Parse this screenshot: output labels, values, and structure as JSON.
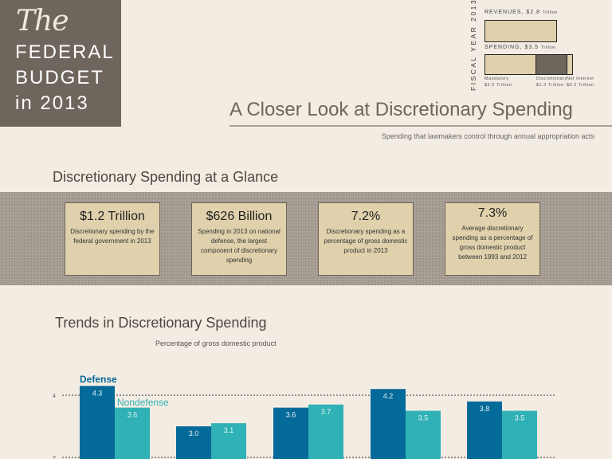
{
  "title_block": {
    "the": "The",
    "line1": "FEDERAL",
    "line2": "BUDGET",
    "line3": "in 2013"
  },
  "fiscal_year": {
    "vertical_label": "FISCAL YEAR 2013",
    "revenues_label": "REVENUES, $2.8",
    "revenues_unit": "Trillion",
    "spending_label": "SPENDING, $3.5",
    "spending_unit": "Trillion",
    "segments": [
      {
        "name": "Mandatory",
        "amount": "$2.0 Trillion",
        "value": 2.0,
        "color": "#e0d1ac"
      },
      {
        "name": "Discretionary",
        "amount": "$1.2 Trillion",
        "value": 1.2,
        "color": "#6e655c"
      },
      {
        "name": "Net Interest",
        "amount": "$0.2 Trillion",
        "value": 0.2,
        "color": "#e0d1ac"
      }
    ]
  },
  "header": {
    "title": "A Closer Look at Discretionary Spending",
    "subtitle": "Spending that lawmakers control through annual appropriation acts"
  },
  "glance": {
    "heading": "Discretionary Spending at a Glance",
    "cards": [
      {
        "value": "$1.2 Trillion",
        "desc": "Discretionary spending by the federal government in 2013"
      },
      {
        "value": "$626 Billion",
        "desc": "Spending in 2013 on national defense, the largest component of discretionary spending"
      },
      {
        "value": "7.2%",
        "desc": "Discretionary spending as a percentage of gross domestic product in 2013"
      },
      {
        "value": "7.3%",
        "desc": "Average discretionary spending as a percentage of gross domestic product between 1993 and 2012"
      }
    ]
  },
  "trends": {
    "heading": "Trends in Discretionary Spending",
    "subheading": "Percentage of gross domestic product"
  },
  "chart_data": {
    "type": "bar",
    "ylabel": "Percentage of gross domestic product",
    "yticks": [
      2,
      4
    ],
    "grid": true,
    "legend_placement": "top-left",
    "series": [
      {
        "name": "Defense",
        "color": "#046a99",
        "values": [
          4.3,
          3.0,
          3.6,
          4.2,
          3.8
        ]
      },
      {
        "name": "Nondefense",
        "color": "#2fb1b5",
        "values": [
          3.6,
          3.1,
          3.7,
          3.5,
          3.5
        ]
      }
    ]
  }
}
